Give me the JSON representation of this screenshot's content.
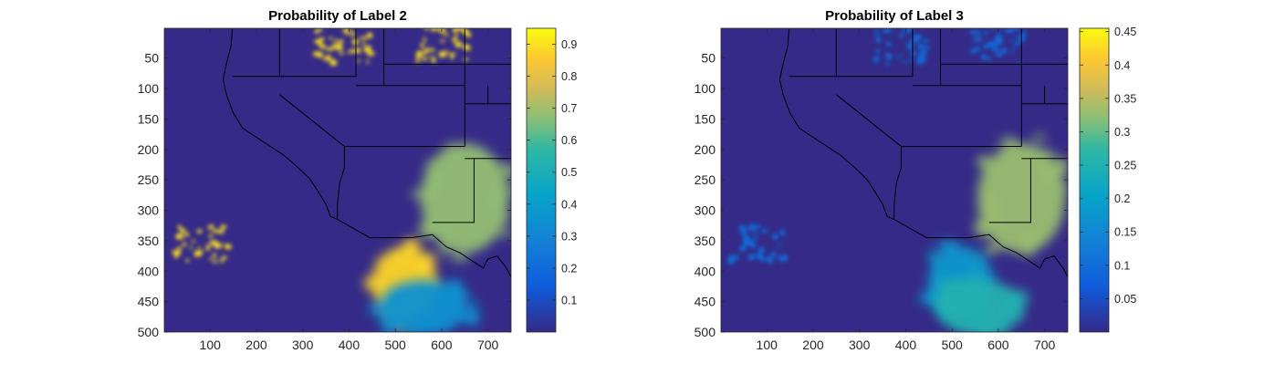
{
  "chart_data": [
    {
      "type": "heatmap",
      "title": "Probability of Label 2",
      "xlim": [
        1,
        750
      ],
      "ylim": [
        1,
        500
      ],
      "y_reversed": true,
      "x_ticks": [
        100,
        200,
        300,
        400,
        500,
        600,
        700
      ],
      "y_ticks": [
        50,
        100,
        150,
        200,
        250,
        300,
        350,
        400,
        450,
        500
      ],
      "colorbar": {
        "colormap": "parula",
        "range": [
          0.0,
          0.95
        ],
        "ticks": [
          0.1,
          0.2,
          0.3,
          0.4,
          0.5,
          0.6,
          0.7,
          0.8,
          0.9
        ]
      },
      "background_value": 0.0,
      "regions": [
        {
          "kind": "storm",
          "center": [
            650,
            280
          ],
          "value": 0.68
        },
        {
          "kind": "storm",
          "center": [
            520,
            420
          ],
          "value": 0.88
        },
        {
          "kind": "storm",
          "center": [
            560,
            460
          ],
          "value": 0.35
        },
        {
          "kind": "speckle",
          "center": [
            80,
            355
          ],
          "value": 0.9
        },
        {
          "kind": "speckle",
          "center": [
            390,
            30
          ],
          "value": 0.9
        },
        {
          "kind": "speckle",
          "center": [
            600,
            30
          ],
          "value": 0.9
        }
      ],
      "overlay": "state and coastline boundaries"
    },
    {
      "type": "heatmap",
      "title": "Probability of Label 3",
      "xlim": [
        1,
        750
      ],
      "ylim": [
        1,
        500
      ],
      "y_reversed": true,
      "x_ticks": [
        100,
        200,
        300,
        400,
        500,
        600,
        700
      ],
      "y_ticks": [
        50,
        100,
        150,
        200,
        250,
        300,
        350,
        400,
        450,
        500
      ],
      "colorbar": {
        "colormap": "parula",
        "range": [
          0.0,
          0.455
        ],
        "ticks": [
          0.05,
          0.1,
          0.15,
          0.2,
          0.25,
          0.3,
          0.35,
          0.4,
          0.45
        ]
      },
      "background_value": 0.0,
      "regions": [
        {
          "kind": "storm",
          "center": [
            650,
            280
          ],
          "value": 0.33
        },
        {
          "kind": "storm",
          "center": [
            520,
            420
          ],
          "value": 0.18
        },
        {
          "kind": "storm",
          "center": [
            560,
            460
          ],
          "value": 0.25
        },
        {
          "kind": "speckle",
          "center": [
            80,
            355
          ],
          "value": 0.1
        },
        {
          "kind": "speckle",
          "center": [
            390,
            30
          ],
          "value": 0.1
        },
        {
          "kind": "speckle",
          "center": [
            600,
            30
          ],
          "value": 0.1
        }
      ],
      "overlay": "state and coastline boundaries"
    }
  ]
}
